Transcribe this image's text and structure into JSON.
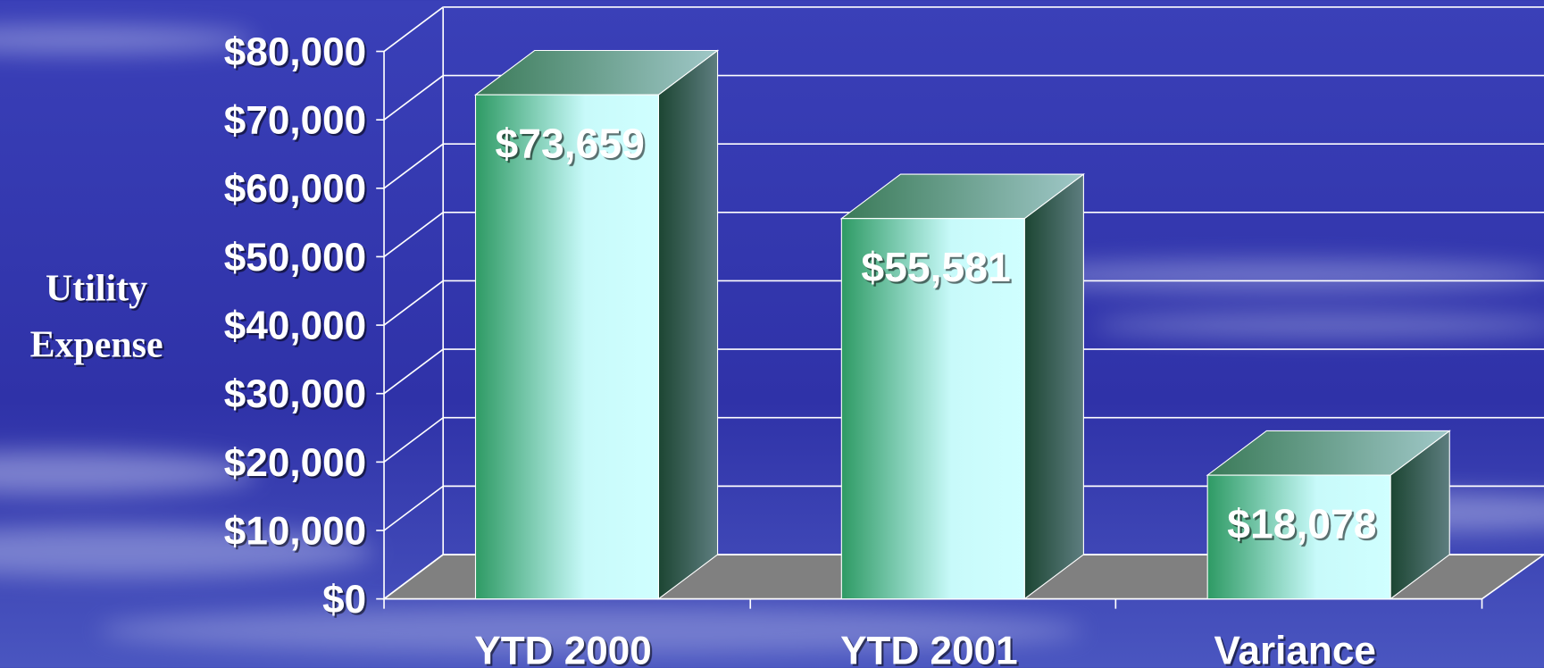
{
  "chart_data": {
    "type": "bar3d",
    "y_label": [
      "Utility",
      "Expense"
    ],
    "categories": [
      "YTD 2000",
      "YTD 2001",
      "Variance"
    ],
    "values": [
      73659,
      55581,
      18078
    ],
    "value_labels": [
      "$73,659",
      "$55,581",
      "$18,078"
    ],
    "ylim": [
      0,
      80000
    ],
    "yticks": [
      {
        "value": 0,
        "label": "$0"
      },
      {
        "value": 10000,
        "label": "$10,000"
      },
      {
        "value": 20000,
        "label": "$20,000"
      },
      {
        "value": 30000,
        "label": "$30,000"
      },
      {
        "value": 40000,
        "label": "$40,000"
      },
      {
        "value": 50000,
        "label": "$50,000"
      },
      {
        "value": 60000,
        "label": "$60,000"
      },
      {
        "value": 70000,
        "label": "$70,000"
      },
      {
        "value": 80000,
        "label": "$80,000"
      }
    ],
    "grid": true
  }
}
